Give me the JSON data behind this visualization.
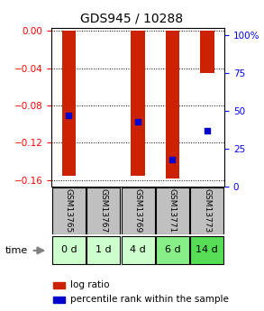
{
  "title": "GDS945 / 10288",
  "samples": [
    "GSM13765",
    "GSM13767",
    "GSM13769",
    "GSM13771",
    "GSM13773"
  ],
  "time_labels": [
    "0 d",
    "1 d",
    "4 d",
    "6 d",
    "14 d"
  ],
  "log_ratios": [
    -0.155,
    null,
    -0.155,
    -0.158,
    -0.045
  ],
  "percentile_ranks": [
    47,
    null,
    43,
    18,
    37
  ],
  "ylim_left": [
    -0.167,
    0.003
  ],
  "ylim_right": [
    0,
    105
  ],
  "yticks_left": [
    0,
    -0.04,
    -0.08,
    -0.12,
    -0.16
  ],
  "yticks_right": [
    0,
    25,
    50,
    75,
    100
  ],
  "bar_color": "#cc2200",
  "dot_color": "#0000cc",
  "bar_width": 0.4,
  "bg_plot": "#ffffff",
  "sample_cell_color": "#c0c0c0",
  "time_cell_colors": [
    "#ccffcc",
    "#ccffcc",
    "#ccffcc",
    "#88ee88",
    "#55dd55"
  ],
  "time_label": "time",
  "legend_log_ratio": "log ratio",
  "legend_percentile": "percentile rank within the sample",
  "title_fontsize": 10,
  "tick_fontsize": 7.5,
  "sample_fontsize": 6.5,
  "time_fontsize": 8
}
